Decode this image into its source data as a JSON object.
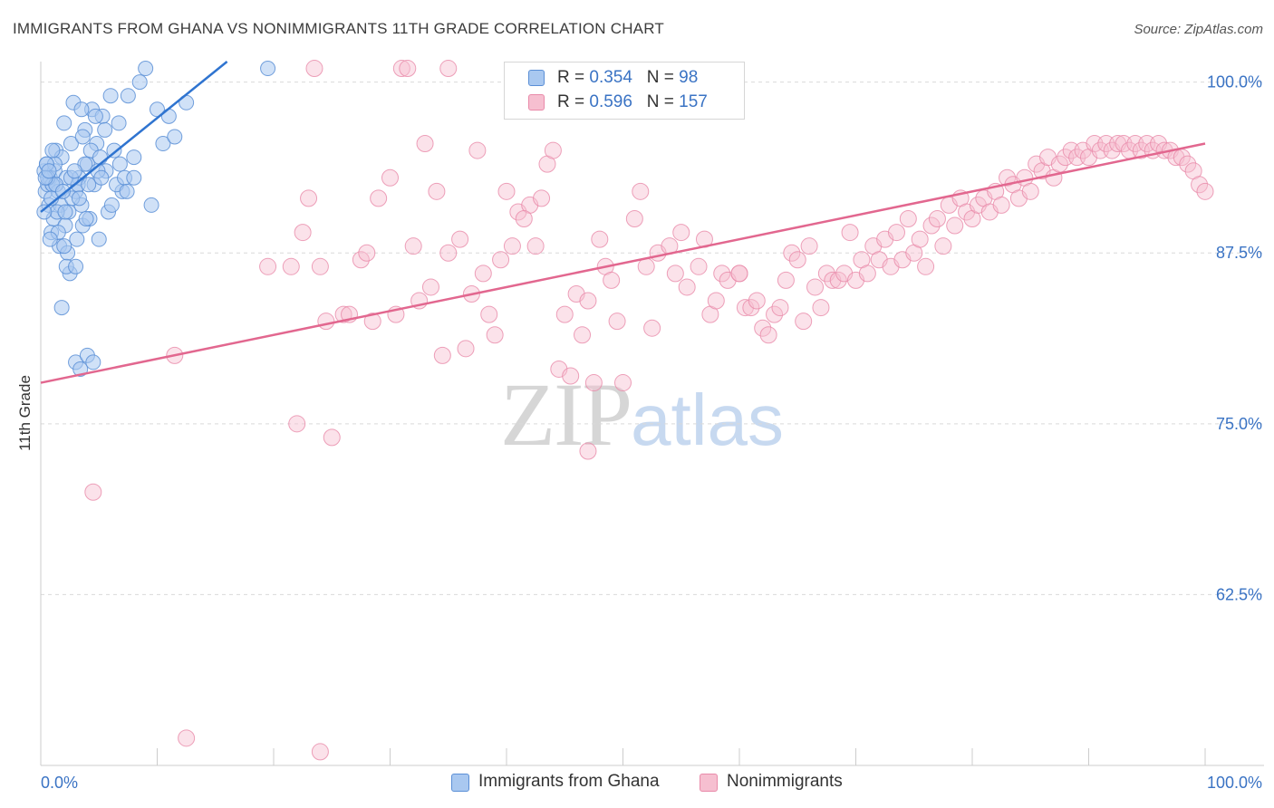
{
  "title": "IMMIGRANTS FROM GHANA VS NONIMMIGRANTS 11TH GRADE CORRELATION CHART",
  "source": "Source: ZipAtlas.com",
  "watermark": {
    "zip": "ZIP",
    "atlas": "atlas"
  },
  "colors": {
    "blue_fill": "#a9c8f0",
    "blue_stroke": "#5b8fd6",
    "blue_line": "#2f74d0",
    "pink_fill": "#f6bfd0",
    "pink_stroke": "#e98aa9",
    "pink_line": "#e2678f",
    "axis_label": "#3a73c4",
    "grid": "#d9d9d9"
  },
  "legend": {
    "rows": [
      {
        "r_label": "R = ",
        "r_value": "0.354",
        "n_label": "N = ",
        "n_value": "98",
        "color": "#a9c8f0",
        "border": "#5b8fd6"
      },
      {
        "r_label": "R = ",
        "r_value": "0.596",
        "n_label": "N = ",
        "n_value": "157",
        "color": "#f6bfd0",
        "border": "#e98aa9"
      }
    ]
  },
  "bottom_legend": [
    {
      "label": "Immigrants from Ghana",
      "color": "#a9c8f0",
      "border": "#5b8fd6"
    },
    {
      "label": "Nonimmigrants",
      "color": "#f6bfd0",
      "border": "#e98aa9"
    }
  ],
  "chart_data": {
    "type": "scatter",
    "title": "IMMIGRANTS FROM GHANA VS NONIMMIGRANTS 11TH GRADE CORRELATION CHART",
    "xlabel": "",
    "ylabel": "11th Grade",
    "xlim": [
      0,
      100
    ],
    "ylim": [
      50,
      101.5
    ],
    "x_tick_labels": [
      "0.0%",
      "100.0%"
    ],
    "y_ticks": [
      62.5,
      75.0,
      87.5,
      100.0
    ],
    "y_tick_labels": [
      "62.5%",
      "75.0%",
      "87.5%",
      "100.0%"
    ],
    "grid": true,
    "series": [
      {
        "name": "Immigrants from Ghana",
        "R": 0.354,
        "N": 98,
        "trend": {
          "x": [
            0,
            16
          ],
          "y": [
            90.5,
            101.5
          ]
        },
        "points": [
          [
            0.3,
            93.5
          ],
          [
            0.4,
            92.0
          ],
          [
            0.5,
            94.0
          ],
          [
            0.6,
            92.5
          ],
          [
            0.7,
            91.0
          ],
          [
            0.8,
            93.0
          ],
          [
            0.9,
            89.0
          ],
          [
            1.0,
            92.5
          ],
          [
            1.1,
            90.0
          ],
          [
            1.2,
            93.5
          ],
          [
            1.3,
            95.0
          ],
          [
            1.5,
            92.0
          ],
          [
            1.6,
            88.0
          ],
          [
            1.7,
            91.0
          ],
          [
            1.8,
            94.5
          ],
          [
            2.0,
            97.0
          ],
          [
            2.1,
            89.5
          ],
          [
            2.2,
            93.0
          ],
          [
            2.4,
            90.5
          ],
          [
            2.5,
            86.0
          ],
          [
            2.6,
            95.5
          ],
          [
            2.8,
            98.5
          ],
          [
            3.0,
            92.0
          ],
          [
            3.1,
            88.5
          ],
          [
            3.3,
            93.0
          ],
          [
            3.5,
            91.0
          ],
          [
            3.6,
            89.5
          ],
          [
            3.8,
            96.5
          ],
          [
            4.0,
            94.0
          ],
          [
            4.2,
            90.0
          ],
          [
            4.4,
            98.0
          ],
          [
            4.6,
            92.5
          ],
          [
            4.8,
            95.5
          ],
          [
            5.0,
            88.5
          ],
          [
            5.3,
            97.5
          ],
          [
            5.6,
            93.5
          ],
          [
            6.0,
            99.0
          ],
          [
            6.3,
            95.0
          ],
          [
            6.7,
            97.0
          ],
          [
            7.0,
            92.0
          ],
          [
            7.5,
            99.0
          ],
          [
            8.0,
            94.5
          ],
          [
            8.5,
            100.0
          ],
          [
            9.0,
            101.0
          ],
          [
            9.5,
            91.0
          ],
          [
            10.0,
            98.0
          ],
          [
            10.5,
            95.5
          ],
          [
            11.0,
            97.5
          ],
          [
            11.5,
            96.0
          ],
          [
            12.5,
            98.5
          ],
          [
            1.0,
            92.5
          ],
          [
            1.4,
            90.5
          ],
          [
            2.3,
            87.5
          ],
          [
            3.0,
            79.5
          ],
          [
            3.4,
            79.0
          ],
          [
            4.0,
            80.0
          ],
          [
            1.8,
            83.5
          ],
          [
            2.2,
            86.5
          ],
          [
            3.0,
            86.5
          ],
          [
            4.5,
            79.5
          ],
          [
            0.6,
            93.0
          ],
          [
            0.9,
            91.5
          ],
          [
            1.2,
            94.0
          ],
          [
            2.7,
            91.5
          ],
          [
            3.2,
            92.5
          ],
          [
            3.9,
            90.0
          ],
          [
            4.9,
            93.5
          ],
          [
            5.8,
            90.5
          ],
          [
            6.5,
            92.5
          ],
          [
            7.2,
            93.0
          ],
          [
            2.0,
            88.0
          ],
          [
            1.5,
            89.0
          ],
          [
            3.6,
            96.0
          ],
          [
            4.7,
            97.5
          ],
          [
            5.5,
            96.5
          ],
          [
            8.0,
            93.0
          ],
          [
            0.5,
            94.0
          ],
          [
            1.0,
            95.0
          ],
          [
            2.6,
            93.0
          ],
          [
            3.8,
            94.0
          ],
          [
            19.5,
            101.0
          ],
          [
            0.3,
            90.5
          ],
          [
            0.8,
            88.5
          ],
          [
            1.3,
            92.5
          ],
          [
            2.1,
            90.5
          ],
          [
            3.3,
            91.5
          ],
          [
            4.1,
            92.5
          ],
          [
            5.2,
            93.0
          ],
          [
            6.1,
            91.0
          ],
          [
            7.4,
            92.0
          ],
          [
            0.4,
            93.0
          ],
          [
            1.9,
            92.0
          ],
          [
            2.9,
            93.5
          ],
          [
            4.3,
            95.0
          ],
          [
            5.1,
            94.5
          ],
          [
            6.8,
            94.0
          ],
          [
            0.7,
            93.5
          ],
          [
            3.5,
            98.0
          ]
        ]
      },
      {
        "name": "Nonimmigrants",
        "R": 0.596,
        "N": 157,
        "trend": {
          "x": [
            0,
            100
          ],
          "y": [
            78.0,
            95.5
          ]
        },
        "points": [
          [
            4.5,
            70.0
          ],
          [
            11.5,
            80.0
          ],
          [
            12.5,
            52.0
          ],
          [
            19.5,
            86.5
          ],
          [
            21.5,
            86.5
          ],
          [
            22.0,
            75.0
          ],
          [
            22.5,
            89.0
          ],
          [
            23.0,
            91.5
          ],
          [
            24.0,
            86.5
          ],
          [
            24.5,
            82.5
          ],
          [
            25.0,
            74.0
          ],
          [
            26.0,
            83.0
          ],
          [
            26.5,
            83.0
          ],
          [
            27.5,
            87.0
          ],
          [
            28.0,
            87.5
          ],
          [
            28.5,
            82.5
          ],
          [
            29.0,
            91.5
          ],
          [
            30.0,
            93.0
          ],
          [
            30.5,
            83.0
          ],
          [
            31.0,
            101.0
          ],
          [
            31.5,
            101.0
          ],
          [
            32.0,
            88.0
          ],
          [
            32.5,
            84.0
          ],
          [
            33.0,
            95.5
          ],
          [
            33.5,
            85.0
          ],
          [
            34.0,
            92.0
          ],
          [
            35.0,
            87.5
          ],
          [
            36.0,
            88.5
          ],
          [
            36.5,
            80.5
          ],
          [
            37.0,
            84.5
          ],
          [
            38.0,
            86.0
          ],
          [
            38.5,
            83.0
          ],
          [
            39.0,
            81.5
          ],
          [
            40.0,
            92.0
          ],
          [
            40.5,
            88.0
          ],
          [
            41.0,
            90.5
          ],
          [
            42.0,
            91.0
          ],
          [
            42.5,
            88.0
          ],
          [
            43.5,
            94.0
          ],
          [
            44.0,
            95.0
          ],
          [
            44.5,
            79.0
          ],
          [
            45.0,
            83.0
          ],
          [
            46.0,
            84.5
          ],
          [
            46.5,
            81.5
          ],
          [
            47.0,
            84.0
          ],
          [
            47.5,
            78.0
          ],
          [
            48.0,
            88.5
          ],
          [
            48.5,
            86.5
          ],
          [
            49.5,
            82.5
          ],
          [
            50.0,
            78.0
          ],
          [
            51.0,
            90.0
          ],
          [
            51.5,
            92.0
          ],
          [
            52.0,
            86.5
          ],
          [
            53.0,
            87.5
          ],
          [
            54.0,
            88.0
          ],
          [
            54.5,
            86.0
          ],
          [
            55.5,
            85.0
          ],
          [
            56.5,
            86.5
          ],
          [
            57.0,
            88.5
          ],
          [
            57.5,
            83.0
          ],
          [
            58.5,
            86.0
          ],
          [
            59.0,
            85.5
          ],
          [
            60.0,
            86.0
          ],
          [
            60.5,
            83.5
          ],
          [
            61.0,
            83.5
          ],
          [
            61.5,
            84.0
          ],
          [
            62.0,
            82.0
          ],
          [
            62.5,
            81.5
          ],
          [
            63.0,
            83.0
          ],
          [
            63.5,
            83.5
          ],
          [
            64.0,
            85.5
          ],
          [
            64.5,
            87.5
          ],
          [
            65.0,
            87.0
          ],
          [
            65.5,
            82.5
          ],
          [
            66.0,
            88.0
          ],
          [
            66.5,
            85.0
          ],
          [
            67.0,
            83.5
          ],
          [
            67.5,
            86.0
          ],
          [
            68.0,
            85.5
          ],
          [
            68.5,
            85.5
          ],
          [
            69.0,
            86.0
          ],
          [
            69.5,
            89.0
          ],
          [
            70.0,
            85.5
          ],
          [
            70.5,
            87.0
          ],
          [
            71.0,
            86.0
          ],
          [
            71.5,
            88.0
          ],
          [
            72.0,
            87.0
          ],
          [
            72.5,
            88.5
          ],
          [
            73.0,
            86.5
          ],
          [
            73.5,
            89.0
          ],
          [
            74.0,
            87.0
          ],
          [
            74.5,
            90.0
          ],
          [
            75.0,
            87.5
          ],
          [
            75.5,
            88.5
          ],
          [
            76.0,
            86.5
          ],
          [
            76.5,
            89.5
          ],
          [
            77.0,
            90.0
          ],
          [
            77.5,
            88.0
          ],
          [
            78.0,
            91.0
          ],
          [
            78.5,
            89.5
          ],
          [
            79.0,
            91.5
          ],
          [
            79.5,
            90.5
          ],
          [
            80.0,
            90.0
          ],
          [
            80.5,
            91.0
          ],
          [
            81.0,
            91.5
          ],
          [
            81.5,
            90.5
          ],
          [
            82.0,
            92.0
          ],
          [
            82.5,
            91.0
          ],
          [
            83.0,
            93.0
          ],
          [
            83.5,
            92.5
          ],
          [
            84.0,
            91.5
          ],
          [
            84.5,
            93.0
          ],
          [
            85.0,
            92.0
          ],
          [
            85.5,
            94.0
          ],
          [
            86.0,
            93.5
          ],
          [
            86.5,
            94.5
          ],
          [
            87.0,
            93.0
          ],
          [
            87.5,
            94.0
          ],
          [
            88.0,
            94.5
          ],
          [
            88.5,
            95.0
          ],
          [
            89.0,
            94.5
          ],
          [
            89.5,
            95.0
          ],
          [
            90.0,
            94.5
          ],
          [
            90.5,
            95.5
          ],
          [
            91.0,
            95.0
          ],
          [
            91.5,
            95.5
          ],
          [
            92.0,
            95.0
          ],
          [
            92.5,
            95.5
          ],
          [
            93.0,
            95.5
          ],
          [
            93.5,
            95.0
          ],
          [
            94.0,
            95.5
          ],
          [
            94.5,
            95.0
          ],
          [
            95.0,
            95.5
          ],
          [
            95.5,
            95.0
          ],
          [
            96.0,
            95.5
          ],
          [
            96.5,
            95.0
          ],
          [
            97.0,
            95.0
          ],
          [
            97.5,
            94.5
          ],
          [
            98.0,
            94.5
          ],
          [
            98.5,
            94.0
          ],
          [
            99.0,
            93.5
          ],
          [
            99.5,
            92.5
          ],
          [
            100.0,
            92.0
          ],
          [
            23.5,
            101.0
          ],
          [
            34.5,
            80.0
          ],
          [
            37.5,
            95.0
          ],
          [
            39.5,
            87.0
          ],
          [
            41.5,
            90.0
          ],
          [
            43.0,
            91.5
          ],
          [
            45.5,
            78.5
          ],
          [
            49.0,
            85.5
          ],
          [
            52.5,
            82.0
          ],
          [
            55.0,
            89.0
          ],
          [
            58.0,
            84.0
          ],
          [
            47.0,
            73.0
          ],
          [
            35.0,
            101.0
          ],
          [
            24.0,
            51.0
          ],
          [
            60.0,
            86.0
          ]
        ]
      }
    ]
  }
}
